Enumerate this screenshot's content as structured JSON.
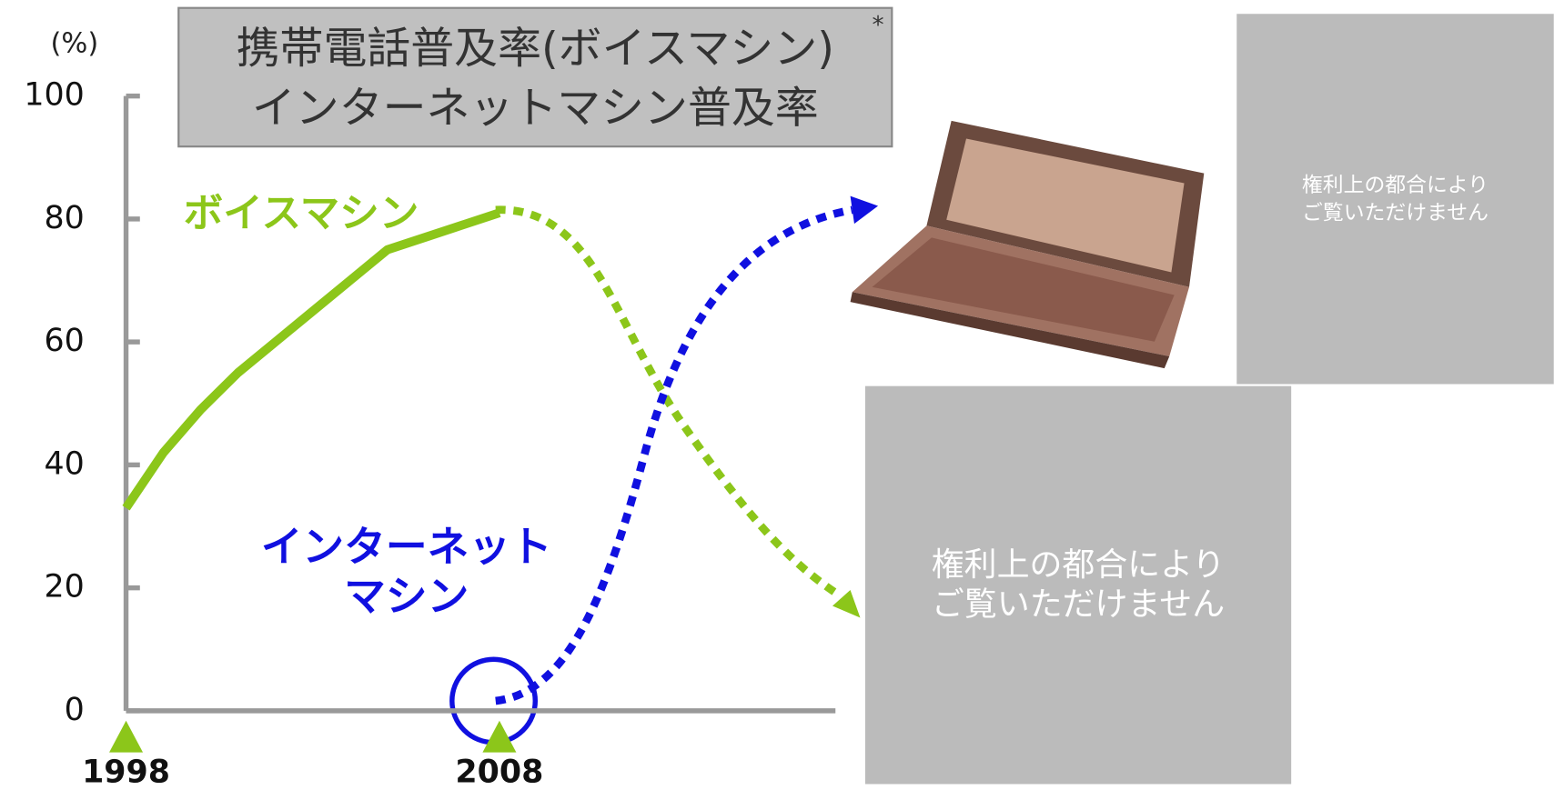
{
  "chart_data": {
    "type": "line",
    "title": [
      "携帯電話普及率(ボイスマシン)",
      "インターネットマシン普及率"
    ],
    "title_mark": "*",
    "y_unit": "(%)",
    "x": [
      1998,
      1999,
      2000,
      2001,
      2002,
      2003,
      2004,
      2005,
      2006,
      2007,
      2008
    ],
    "series": [
      {
        "name": "ボイスマシン",
        "color": "#8cc61a",
        "values": [
          33,
          42,
          49,
          55,
          60,
          65,
          70,
          75,
          77,
          79,
          81
        ]
      }
    ],
    "annotation": {
      "lines": [
        "インターネット",
        "マシン"
      ],
      "color": "#1010e0"
    },
    "xlim": [
      1998,
      2017
    ],
    "xticks": [
      1998,
      2008
    ],
    "ylim": [
      0,
      100
    ],
    "yticks": [
      0,
      20,
      40,
      60,
      80,
      100
    ]
  },
  "notices": [
    [
      "権利上の都合により",
      "ご覧いただけません"
    ],
    [
      "権利上の都合により",
      "ご覧いただけません"
    ]
  ]
}
